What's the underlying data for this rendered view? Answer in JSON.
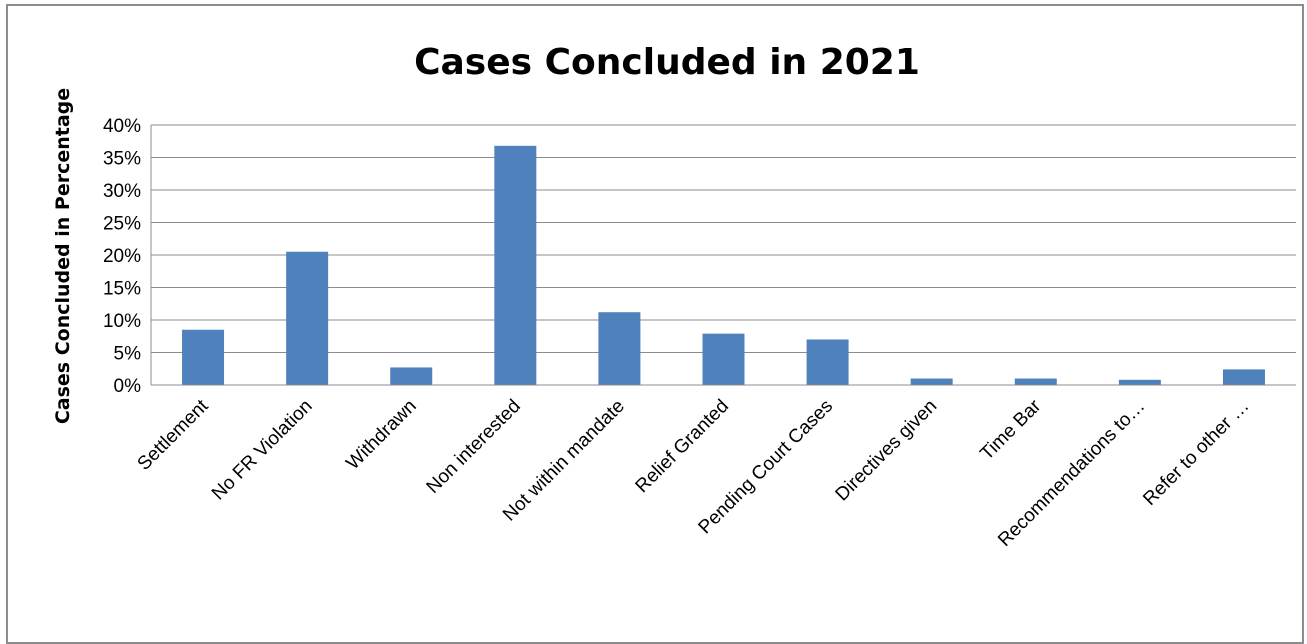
{
  "chart_data": {
    "type": "bar",
    "title": "Cases Concluded in 2021",
    "xlabel": "",
    "ylabel": "Cases Concluded in  Percentage",
    "ylim": [
      0,
      40
    ],
    "yticks": [
      "0%",
      "5%",
      "10%",
      "15%",
      "20%",
      "25%",
      "30%",
      "35%",
      "40%"
    ],
    "grid": true,
    "legend": "none",
    "bar_color": "#4f81bd",
    "categories": [
      "Settlement",
      "No FR Violation",
      "Withdrawn",
      "Non interested",
      "Not within mandate",
      "Relief Granted",
      "Pending Court Cases",
      "Directives given",
      "Time Bar",
      "Recommendations to…",
      "Refer to other …"
    ],
    "values": [
      8.5,
      20.5,
      2.7,
      36.8,
      11.2,
      7.9,
      7.0,
      1.0,
      1.0,
      0.8,
      2.4
    ]
  }
}
